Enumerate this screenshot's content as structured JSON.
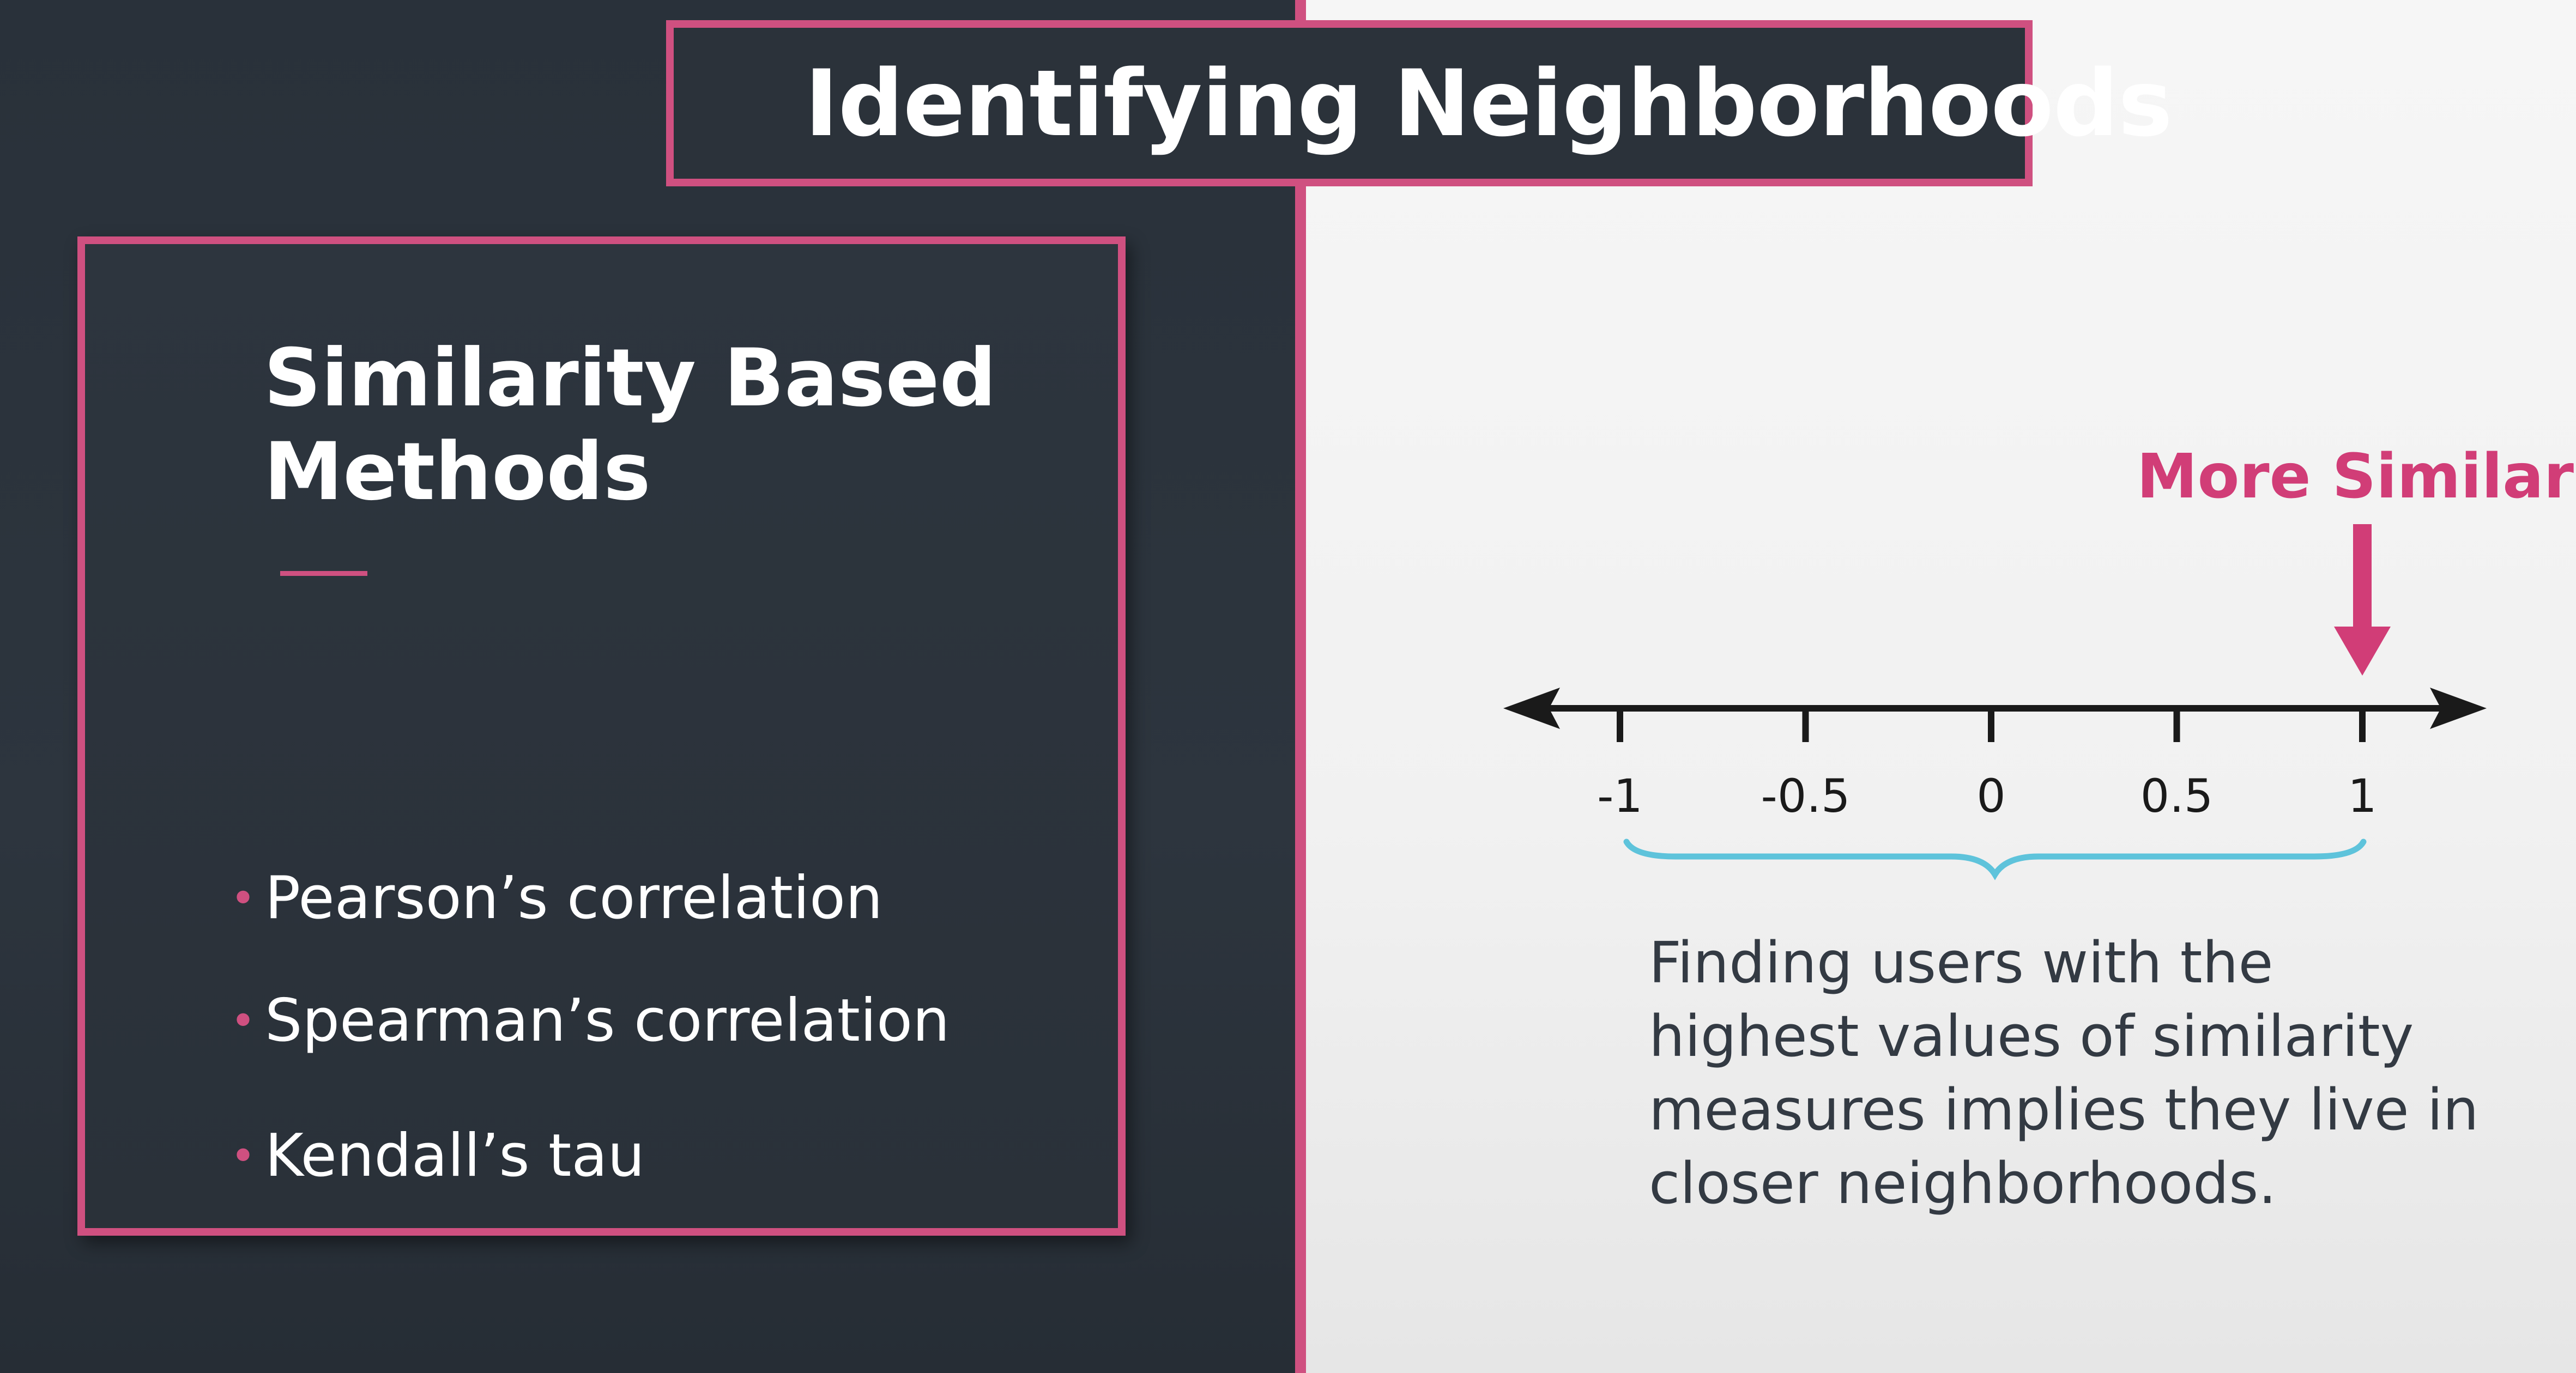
{
  "title": "Identifying Neighborhoods",
  "left_panel": {
    "heading_line1": "Similarity Based",
    "heading_line2": "Methods",
    "methods": [
      "Pearson’s correlation",
      "Spearman’s correlation",
      "Kendall’s tau"
    ]
  },
  "right_panel": {
    "callout": "More Similar",
    "axis": {
      "ticks": [
        -1,
        -0.5,
        0,
        0.5,
        1
      ],
      "tick_labels": [
        "-1",
        "-0.5",
        "0",
        "0.5",
        "1"
      ],
      "range": [
        -1,
        1
      ],
      "highlight_value": 1
    },
    "caption": [
      "Finding users with the",
      "highest values of similarity",
      "measures implies they live in",
      "closer neighborhoods."
    ]
  },
  "colors": {
    "accent_pink": "#cf5080",
    "callout_pink": "#d13d77",
    "brace_teal": "#5ec3db",
    "dark_bg": "#2c343d",
    "light_bg": "#f3f3f3",
    "axis": "#1a1a1a"
  }
}
